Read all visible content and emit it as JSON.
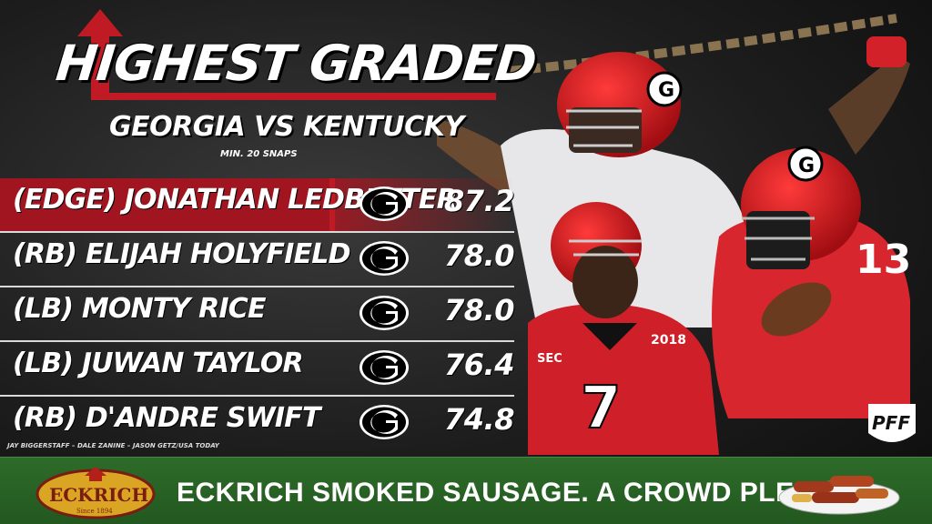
{
  "header": {
    "title": "HIGHEST GRADED",
    "subtitle": "GEORGIA VS KENTUCKY",
    "min_snaps": "MIN. 20 SNAPS"
  },
  "rows": [
    {
      "name": "(EDGE) JONATHAN LEDBETTER",
      "grade": "87.2",
      "logo": "georgia-g-logo"
    },
    {
      "name": "(RB) ELIJAH HOLYFIELD",
      "grade": "78.0",
      "logo": "georgia-g-logo"
    },
    {
      "name": "(LB) MONTY RICE",
      "grade": "78.0",
      "logo": "georgia-g-logo"
    },
    {
      "name": "(LB) JUWAN TAYLOR",
      "grade": "76.4",
      "logo": "georgia-g-logo"
    },
    {
      "name": "(RB) D'ANDRE SWIFT",
      "grade": "74.8",
      "logo": "georgia-g-logo"
    }
  ],
  "credit": "JAY BIGGERSTAFF – DALE ZANINE – JASON GETZ/USA TODAY",
  "photo_texts": {
    "jersey_1": "7",
    "jersey_2": "13",
    "patch": "2018",
    "sec": "SEC"
  },
  "pff_logo": "PFF",
  "ad": {
    "brand": "ECKRICH",
    "since": "Since 1894",
    "text": "ECKRICH SMOKED SAUSAGE. A CROWD PLEASER."
  },
  "colors": {
    "accent_red": "#c01a24",
    "banner_green": "#2a6426",
    "georgia_red": "#ba0c2f"
  }
}
